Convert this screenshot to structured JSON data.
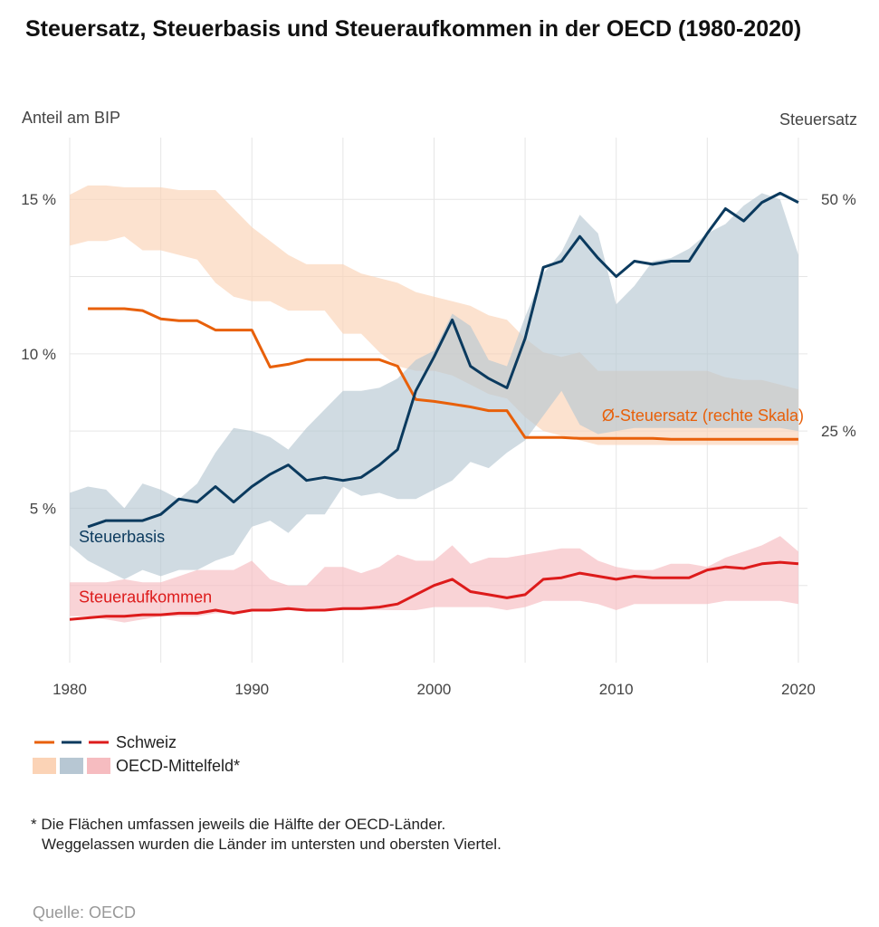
{
  "title": "Steuersatz, Steuerbasis und Steueraufkommen in der OECD (1980-2020)",
  "axis_left_title": "Anteil am BIP",
  "axis_right_title": "Steuersatz",
  "legend": {
    "schweiz_label": "Schweiz",
    "oecd_label": "OECD-Mittelfeld*"
  },
  "note": {
    "line1": "* Die Flächen umfassen jeweils die Hälfte der OECD-Länder.",
    "line2": "Weggelassen wurden die Länder im untersten und obersten Viertel."
  },
  "source": "Quelle: OECD",
  "colors": {
    "steuersatz": "#e8600a",
    "steuerbasis": "#0b3a5e",
    "steueraufkommen": "#dd1b1b",
    "band_steuersatz": "#fbd3b6",
    "band_steuerbasis": "#b7c7d3",
    "band_steueraufkommen": "#f6bcc0"
  },
  "chart_data": {
    "type": "line",
    "x_ticks": [
      "1980",
      "1990",
      "2000",
      "2010",
      "2020"
    ],
    "left_axis": {
      "ticks": [
        "5 %",
        "10 %",
        "15 %"
      ],
      "ylim": [
        0,
        17
      ]
    },
    "right_axis": {
      "ticks": [
        "25 %",
        "50 %"
      ]
    },
    "series": [
      {
        "name": "Steuersatz",
        "label": "Ø-Steuersatz (rechte Skala)",
        "axis": "right",
        "x": [
          1981,
          1982,
          1983,
          1984,
          1985,
          1986,
          1987,
          1988,
          1989,
          1990,
          1991,
          1992,
          1993,
          1994,
          1995,
          1996,
          1997,
          1998,
          1999,
          2000,
          2001,
          2002,
          2003,
          2004,
          2005,
          2006,
          2007,
          2008,
          2009,
          2010,
          2011,
          2012,
          2013,
          2014,
          2015,
          2016,
          2017,
          2018,
          2019,
          2020
        ],
        "y": [
          38.2,
          38.2,
          38.2,
          38.0,
          37.1,
          36.9,
          36.9,
          35.9,
          35.9,
          35.9,
          31.9,
          32.2,
          32.7,
          32.7,
          32.7,
          32.7,
          32.7,
          32.0,
          28.4,
          28.2,
          27.9,
          27.6,
          27.2,
          27.2,
          24.3,
          24.3,
          24.3,
          24.2,
          24.2,
          24.2,
          24.2,
          24.2,
          24.1,
          24.1,
          24.1,
          24.1,
          24.1,
          24.1,
          24.1,
          24.1
        ]
      },
      {
        "name": "Steuerbasis",
        "label": "Steuerbasis",
        "axis": "left",
        "x": [
          1981,
          1982,
          1983,
          1984,
          1985,
          1986,
          1987,
          1988,
          1989,
          1990,
          1991,
          1992,
          1993,
          1994,
          1995,
          1996,
          1997,
          1998,
          1999,
          2000,
          2001,
          2002,
          2003,
          2004,
          2005,
          2006,
          2007,
          2008,
          2009,
          2010,
          2011,
          2012,
          2013,
          2014,
          2015,
          2016,
          2017,
          2018,
          2019,
          2020
        ],
        "y": [
          4.4,
          4.6,
          4.6,
          4.6,
          4.8,
          5.3,
          5.2,
          5.7,
          5.2,
          5.7,
          6.1,
          6.4,
          5.9,
          6.0,
          5.9,
          6.0,
          6.4,
          6.9,
          8.8,
          9.9,
          11.1,
          9.6,
          9.2,
          8.9,
          10.5,
          12.8,
          13.0,
          13.8,
          13.1,
          12.5,
          13.0,
          12.9,
          13.0,
          13.0,
          13.9,
          14.7,
          14.3,
          14.9,
          15.2,
          14.9
        ]
      },
      {
        "name": "Steueraufkommen",
        "label": "Steueraufkommen",
        "axis": "left",
        "x": [
          1980,
          1981,
          1982,
          1983,
          1984,
          1985,
          1986,
          1987,
          1988,
          1989,
          1990,
          1991,
          1992,
          1993,
          1994,
          1995,
          1996,
          1997,
          1998,
          1999,
          2000,
          2001,
          2002,
          2003,
          2004,
          2005,
          2006,
          2007,
          2008,
          2009,
          2010,
          2011,
          2012,
          2013,
          2014,
          2015,
          2016,
          2017,
          2018,
          2019,
          2020
        ],
        "y": [
          1.4,
          1.45,
          1.5,
          1.5,
          1.55,
          1.55,
          1.6,
          1.6,
          1.7,
          1.6,
          1.7,
          1.7,
          1.75,
          1.7,
          1.7,
          1.75,
          1.75,
          1.8,
          1.9,
          2.2,
          2.5,
          2.7,
          2.3,
          2.2,
          2.1,
          2.2,
          2.7,
          2.75,
          2.9,
          2.8,
          2.7,
          2.8,
          2.75,
          2.75,
          2.75,
          3.0,
          3.1,
          3.05,
          3.2,
          3.25,
          3.2
        ]
      }
    ],
    "bands": [
      {
        "name": "Steuersatz",
        "axis": "right",
        "x": [
          1980,
          1981,
          1982,
          1983,
          1984,
          1985,
          1986,
          1987,
          1988,
          1989,
          1990,
          1991,
          1992,
          1993,
          1994,
          1995,
          1996,
          1997,
          1998,
          1999,
          2000,
          2001,
          2002,
          2003,
          2004,
          2005,
          2006,
          2007,
          2008,
          2009,
          2010,
          2011,
          2012,
          2013,
          2014,
          2015,
          2016,
          2017,
          2018,
          2019,
          2020
        ],
        "low": [
          45.0,
          45.5,
          45.5,
          46.0,
          44.5,
          44.5,
          44.0,
          43.5,
          41.0,
          39.5,
          39.0,
          39.0,
          38.0,
          38.0,
          38.0,
          35.5,
          35.5,
          33.5,
          32.0,
          31.5,
          31.5,
          31.0,
          30.0,
          29.0,
          28.5,
          26.5,
          25.0,
          24.5,
          24.0,
          23.5,
          23.5,
          23.5,
          23.5,
          23.5,
          23.5,
          23.5,
          23.5,
          23.5,
          23.5,
          23.5,
          23.5
        ],
        "high": [
          50.5,
          51.5,
          51.5,
          51.3,
          51.3,
          51.3,
          51.0,
          51.0,
          51.0,
          49.0,
          47.0,
          45.5,
          44.0,
          43.0,
          43.0,
          43.0,
          42.0,
          41.5,
          41.0,
          40.0,
          39.5,
          39.0,
          38.5,
          37.5,
          37.0,
          35.0,
          33.5,
          33.0,
          33.5,
          31.5,
          31.5,
          31.5,
          31.5,
          31.5,
          31.5,
          31.5,
          30.8,
          30.5,
          30.5,
          30.0,
          29.5
        ]
      },
      {
        "name": "Steuerbasis",
        "axis": "left",
        "x": [
          1980,
          1981,
          1982,
          1983,
          1984,
          1985,
          1986,
          1987,
          1988,
          1989,
          1990,
          1991,
          1992,
          1993,
          1994,
          1995,
          1996,
          1997,
          1998,
          1999,
          2000,
          2001,
          2002,
          2003,
          2004,
          2005,
          2006,
          2007,
          2008,
          2009,
          2010,
          2011,
          2012,
          2013,
          2014,
          2015,
          2016,
          2017,
          2018,
          2019,
          2020
        ],
        "low": [
          3.8,
          3.3,
          3.0,
          2.7,
          3.0,
          2.8,
          3.0,
          3.0,
          3.3,
          3.5,
          4.4,
          4.6,
          4.2,
          4.8,
          4.8,
          5.7,
          5.4,
          5.5,
          5.3,
          5.3,
          5.6,
          5.9,
          6.5,
          6.3,
          6.8,
          7.2,
          8.0,
          8.8,
          7.7,
          7.4,
          7.5,
          7.6,
          7.6,
          7.6,
          7.6,
          7.6,
          7.6,
          7.6,
          7.6,
          7.6,
          7.5
        ],
        "high": [
          5.5,
          5.7,
          5.6,
          5.0,
          5.8,
          5.6,
          5.3,
          5.8,
          6.8,
          7.6,
          7.5,
          7.3,
          6.9,
          7.6,
          8.2,
          8.8,
          8.8,
          8.9,
          9.2,
          9.8,
          10.1,
          11.3,
          10.9,
          9.8,
          9.6,
          11.2,
          12.6,
          13.3,
          14.5,
          13.9,
          11.6,
          12.2,
          13.0,
          13.1,
          13.4,
          13.9,
          14.2,
          14.8,
          15.2,
          15.0,
          13.2
        ]
      },
      {
        "name": "Steueraufkommen",
        "axis": "left",
        "x": [
          1980,
          1981,
          1982,
          1983,
          1984,
          1985,
          1986,
          1987,
          1988,
          1989,
          1990,
          1991,
          1992,
          1993,
          1994,
          1995,
          1996,
          1997,
          1998,
          1999,
          2000,
          2001,
          2002,
          2003,
          2004,
          2005,
          2006,
          2007,
          2008,
          2009,
          2010,
          2011,
          2012,
          2013,
          2014,
          2015,
          2016,
          2017,
          2018,
          2019,
          2020
        ],
        "low": [
          1.5,
          1.5,
          1.4,
          1.3,
          1.4,
          1.5,
          1.5,
          1.5,
          1.6,
          1.6,
          1.7,
          1.7,
          1.7,
          1.7,
          1.7,
          1.7,
          1.7,
          1.7,
          1.7,
          1.7,
          1.8,
          1.8,
          1.8,
          1.8,
          1.7,
          1.8,
          2.0,
          2.0,
          2.0,
          1.9,
          1.7,
          1.9,
          1.9,
          1.9,
          1.9,
          1.9,
          2.0,
          2.0,
          2.0,
          2.0,
          1.9
        ],
        "high": [
          2.6,
          2.6,
          2.6,
          2.7,
          2.6,
          2.6,
          2.8,
          3.0,
          3.0,
          3.0,
          3.3,
          2.7,
          2.5,
          2.5,
          3.1,
          3.1,
          2.9,
          3.1,
          3.5,
          3.3,
          3.3,
          3.8,
          3.2,
          3.4,
          3.4,
          3.5,
          3.6,
          3.7,
          3.7,
          3.3,
          3.1,
          3.0,
          3.0,
          3.2,
          3.2,
          3.1,
          3.4,
          3.6,
          3.8,
          4.1,
          3.6
        ]
      }
    ],
    "grid": true
  }
}
